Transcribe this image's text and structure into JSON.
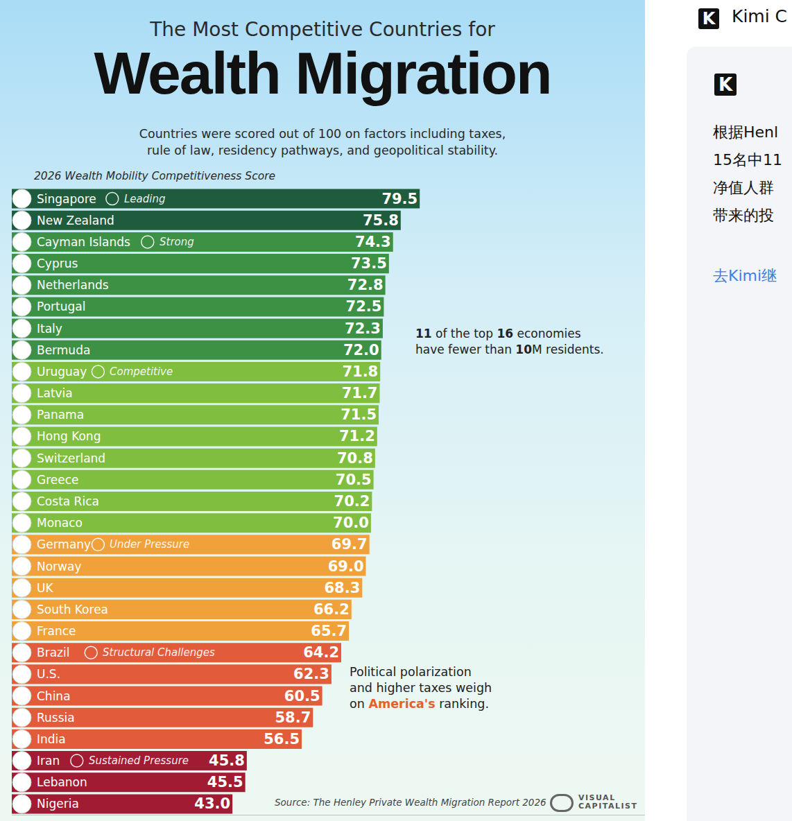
{
  "chart_data": {
    "type": "bar",
    "orientation": "horizontal",
    "supertitle": "The Most Competitive Countries for",
    "title": "Wealth Migration",
    "subtitle": [
      "Countries were scored out of 100 on factors including taxes,",
      "rule of law, residency pathways, and geopolitical stability."
    ],
    "axis_label": "2026 Wealth Mobility Competitiveness Score",
    "categories": [
      "Singapore",
      "New Zealand",
      "Cayman Islands",
      "Cyprus",
      "Netherlands",
      "Portugal",
      "Italy",
      "Bermuda",
      "Uruguay",
      "Latvia",
      "Panama",
      "Hong Kong",
      "Switzerland",
      "Greece",
      "Costa Rica",
      "Monaco",
      "Germany",
      "Norway",
      "UK",
      "South Korea",
      "France",
      "Brazil",
      "U.S.",
      "China",
      "Russia",
      "India",
      "Iran",
      "Lebanon",
      "Nigeria"
    ],
    "values": [
      79.5,
      75.8,
      74.3,
      73.5,
      72.8,
      72.5,
      72.3,
      72.0,
      71.8,
      71.7,
      71.5,
      71.2,
      70.8,
      70.5,
      70.2,
      70.0,
      69.7,
      69.0,
      68.3,
      66.2,
      65.7,
      64.2,
      62.3,
      60.5,
      58.7,
      56.5,
      45.8,
      45.5,
      43.0
    ],
    "value_labels": [
      "79.5",
      "75.8",
      "74.3",
      "73.5",
      "72.8",
      "72.5",
      "72.3",
      "72.0",
      "71.8",
      "71.7",
      "71.5",
      "71.2",
      "70.8",
      "70.5",
      "70.2",
      "70.0",
      "69.7",
      "69.0",
      "68.3",
      "66.2",
      "65.7",
      "64.2",
      "62.3",
      "60.5",
      "58.7",
      "56.5",
      "45.8",
      "45.5",
      "43.0"
    ],
    "tiers": [
      "Leading",
      null,
      "Strong",
      null,
      null,
      null,
      null,
      null,
      "Competitive",
      null,
      null,
      null,
      null,
      null,
      null,
      null,
      "Under Pressure",
      null,
      null,
      null,
      null,
      "Structural Challenges",
      null,
      null,
      null,
      null,
      "Sustained Pressure",
      null,
      null
    ],
    "colors": [
      "#1f5c3d",
      "#1f5c3d",
      "#3c9145",
      "#3c9145",
      "#3c9145",
      "#3c9145",
      "#3c9145",
      "#3c9145",
      "#7fbe3f",
      "#7fbe3f",
      "#7fbe3f",
      "#7fbe3f",
      "#7fbe3f",
      "#7fbe3f",
      "#7fbe3f",
      "#7fbe3f",
      "#f0a13a",
      "#f0a13a",
      "#f0a13a",
      "#f0a13a",
      "#f0a13a",
      "#e25b3b",
      "#e25b3b",
      "#e25b3b",
      "#e25b3b",
      "#e25b3b",
      "#a11c32",
      "#a11c32",
      "#a11c32"
    ],
    "xlim": [
      0,
      123.4
    ],
    "xticks": [],
    "tick_labels": false,
    "grid": false,
    "data_labels": true,
    "annotations": [
      {
        "lines": [
          "11 of the top 16 economies",
          "have fewer than 10M residents."
        ]
      },
      {
        "lines": [
          "Political polarization",
          "and higher taxes weigh",
          "on America's ranking."
        ],
        "highlight": "America's"
      }
    ],
    "source": "Source: The Henley Private Wealth Migration Report 2026",
    "brand": [
      "VISUAL",
      "CAPITALIST"
    ]
  },
  "side_panel": {
    "logo": "K",
    "app_title": "Kimi C",
    "lines": [
      "根据Henl",
      "15名中11",
      "净值人群",
      "带来的投"
    ],
    "link": "去Kimi继"
  }
}
